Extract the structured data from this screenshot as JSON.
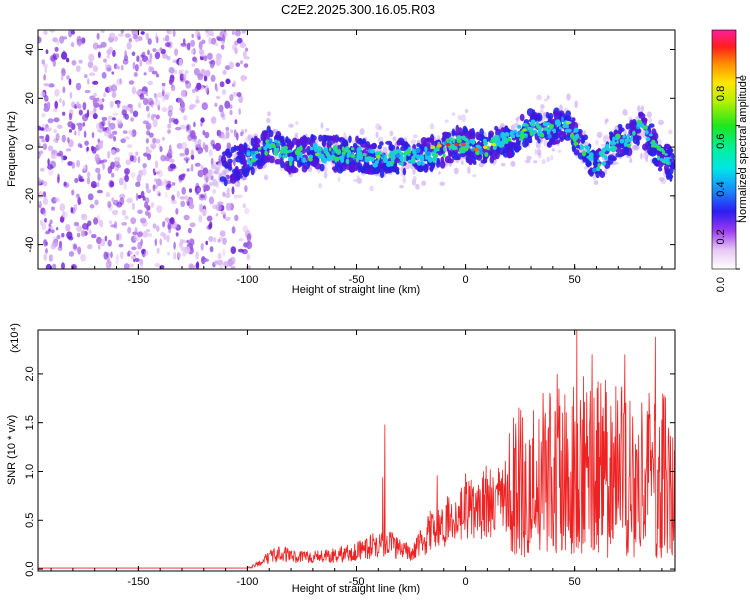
{
  "title": "C2E2.2025.300.16.05.R03",
  "chart_data": [
    {
      "type": "heatmap",
      "name": "spectrogram",
      "xlabel": "Height of straight line (km)",
      "ylabel": "Frequency (Hz)",
      "xlim": [
        -196,
        96
      ],
      "ylim": [
        -50,
        48
      ],
      "xticks": [
        -150,
        -100,
        -50,
        0,
        50
      ],
      "yticks": [
        -40,
        -20,
        0,
        20,
        40
      ],
      "noise_region": [
        -196,
        -103
      ],
      "signal_ridge": {
        "x": [
          -115,
          -100,
          -90,
          -80,
          -70,
          -60,
          -50,
          -40,
          -30,
          -20,
          -10,
          -5,
          0,
          5,
          10,
          20,
          30,
          40,
          45,
          50,
          55,
          60,
          65,
          70,
          75,
          80,
          85,
          90,
          96
        ],
        "y": [
          -10,
          -5,
          1,
          -4,
          -2,
          -3,
          -3,
          -5,
          -4,
          -4,
          -1,
          1,
          1,
          -1,
          0,
          3,
          8,
          7,
          10,
          5,
          -2,
          -8,
          -2,
          2,
          3,
          8,
          3,
          -4,
          -8
        ]
      },
      "colorbar": {
        "label": "Normalized spectral amplitude",
        "range": [
          0,
          1
        ],
        "ticks": [
          "0.0",
          "0.2",
          "0.4",
          "0.6",
          "0.8"
        ]
      }
    },
    {
      "type": "line",
      "name": "snr",
      "xlabel": "Height of straight line (km)",
      "ylabel": "SNR (10 * v/v)",
      "multiplier_label": "(x10⁴)",
      "xlim": [
        -196,
        96
      ],
      "ylim": [
        -0.02,
        2.45
      ],
      "xticks": [
        -150,
        -100,
        -50,
        0,
        50
      ],
      "yticks": [
        "0.0",
        "0.5",
        "1.0",
        "1.5",
        "2.0"
      ],
      "series_color": "#ee2222",
      "envelope": {
        "x": [
          -196,
          -100,
          -95,
          -90,
          -85,
          -80,
          -75,
          -70,
          -60,
          -50,
          -45,
          -40,
          -35,
          -30,
          -25,
          -20,
          -15,
          -10,
          -5,
          0,
          5,
          10,
          15,
          20,
          25,
          30,
          35,
          40,
          45,
          50,
          55,
          60,
          65,
          70,
          75,
          80,
          85,
          90,
          96
        ],
        "y": [
          0.01,
          0.01,
          0.05,
          0.12,
          0.16,
          0.14,
          0.12,
          0.12,
          0.14,
          0.18,
          0.22,
          0.26,
          0.25,
          0.22,
          0.18,
          0.28,
          0.42,
          0.48,
          0.52,
          0.58,
          0.6,
          0.7,
          0.78,
          0.82,
          0.88,
          0.95,
          0.95,
          0.98,
          1.0,
          1.05,
          1.05,
          1.1,
          1.05,
          1.0,
          1.0,
          0.98,
          0.95,
          0.95,
          0.95
        ]
      },
      "spikes": [
        {
          "x": -37,
          "y": 1.48
        },
        {
          "x": -38,
          "y": 0.94
        },
        {
          "x": -13,
          "y": 0.96
        },
        {
          "x": 0,
          "y": 0.98
        },
        {
          "x": 41,
          "y": 1.62
        },
        {
          "x": 42,
          "y": 2.0
        },
        {
          "x": 51,
          "y": 2.45
        },
        {
          "x": 58,
          "y": 2.2
        },
        {
          "x": 73,
          "y": 2.2
        },
        {
          "x": 87,
          "y": 2.38
        },
        {
          "x": 91,
          "y": 1.78
        }
      ]
    }
  ]
}
